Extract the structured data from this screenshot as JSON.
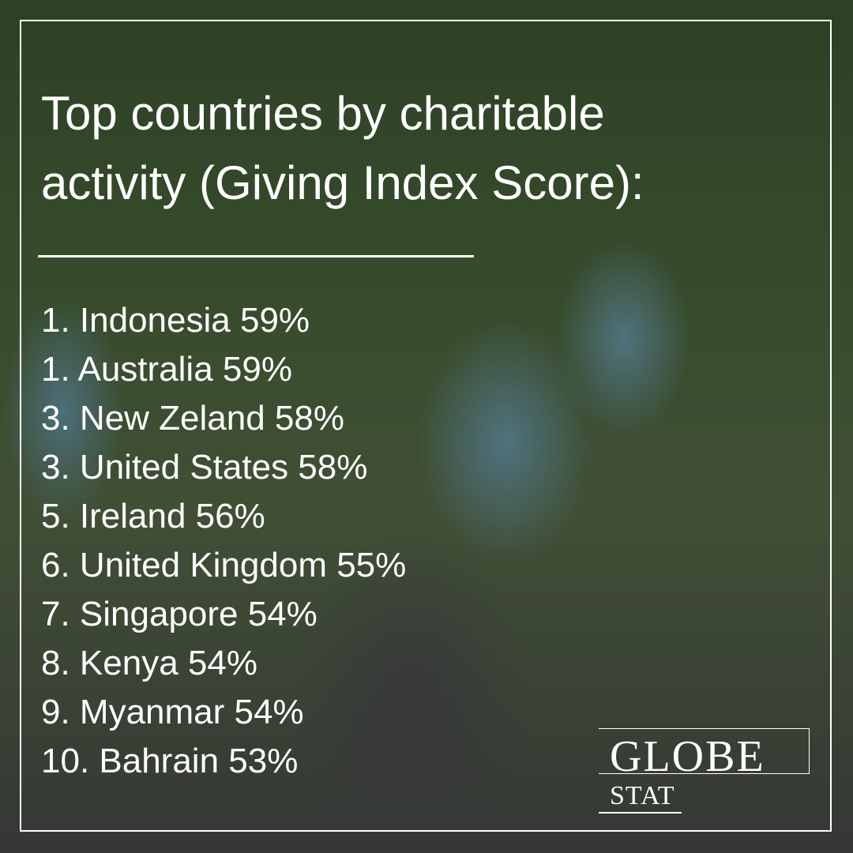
{
  "header": {
    "title_lines": [
      "Top countries by charitable",
      "activity (Giving Index Score):"
    ]
  },
  "list": {
    "items": [
      "1. Indonesia 59%",
      "1. Australia 59%",
      "3. New Zeland 58%",
      "3. United States 58%",
      "5. Ireland 56%",
      "6. United Kingdom 55%",
      "7. Singapore 54%",
      "8. Kenya 54%",
      "9. Myanmar 54%",
      "10. Bahrain 53%"
    ]
  },
  "logo": {
    "name": "GLOBE",
    "sub": "STAT"
  }
}
